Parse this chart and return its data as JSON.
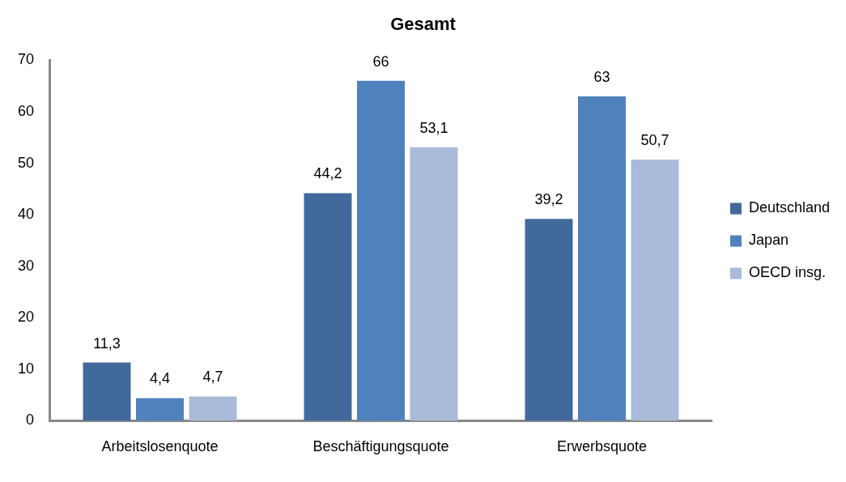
{
  "chart_data": {
    "type": "bar",
    "title": "Gesamt",
    "categories": [
      "Arbeitslosenquote",
      "Beschäftigungsquote",
      "Erwerbsquote"
    ],
    "series": [
      {
        "name": "Deutschland",
        "color": "#41699c",
        "values": [
          11.3,
          44.2,
          39.2
        ],
        "value_labels": [
          "11,3",
          "44,2",
          "39,2"
        ]
      },
      {
        "name": "Japan",
        "color": "#4f81bd",
        "values": [
          4.4,
          66,
          63
        ],
        "value_labels": [
          "4,4",
          "66",
          "63"
        ]
      },
      {
        "name": "OECD insg.",
        "color": "#a9bbd9",
        "values": [
          4.7,
          53.1,
          50.7
        ],
        "value_labels": [
          "4,7",
          "53,1",
          "50,7"
        ]
      }
    ],
    "ylim": [
      0,
      70
    ],
    "yticks": [
      0,
      10,
      20,
      30,
      40,
      50,
      60,
      70
    ],
    "grid": false,
    "legend": "right"
  }
}
